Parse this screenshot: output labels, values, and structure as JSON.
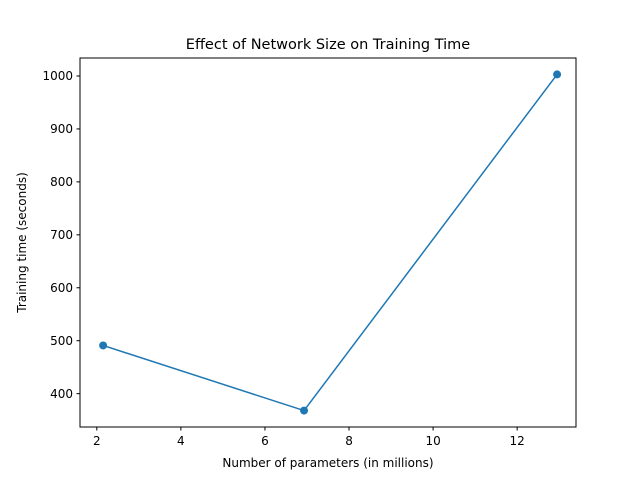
{
  "chart_data": {
    "type": "line",
    "title": "Effect of Network Size on Training Time",
    "xlabel": "Number of parameters (in millions)",
    "ylabel": "Training time (seconds)",
    "xlim": [
      1.6,
      13.4
    ],
    "ylim": [
      337,
      1034
    ],
    "xticks": [
      2,
      4,
      6,
      8,
      10,
      12
    ],
    "yticks": [
      400,
      500,
      600,
      700,
      800,
      900,
      1000
    ],
    "grid": false,
    "series": [
      {
        "color": "#1f77b4",
        "marker": "circle",
        "points": [
          {
            "x": 2.15,
            "y": 491
          },
          {
            "x": 6.93,
            "y": 368
          },
          {
            "x": 12.95,
            "y": 1003
          }
        ]
      }
    ]
  }
}
